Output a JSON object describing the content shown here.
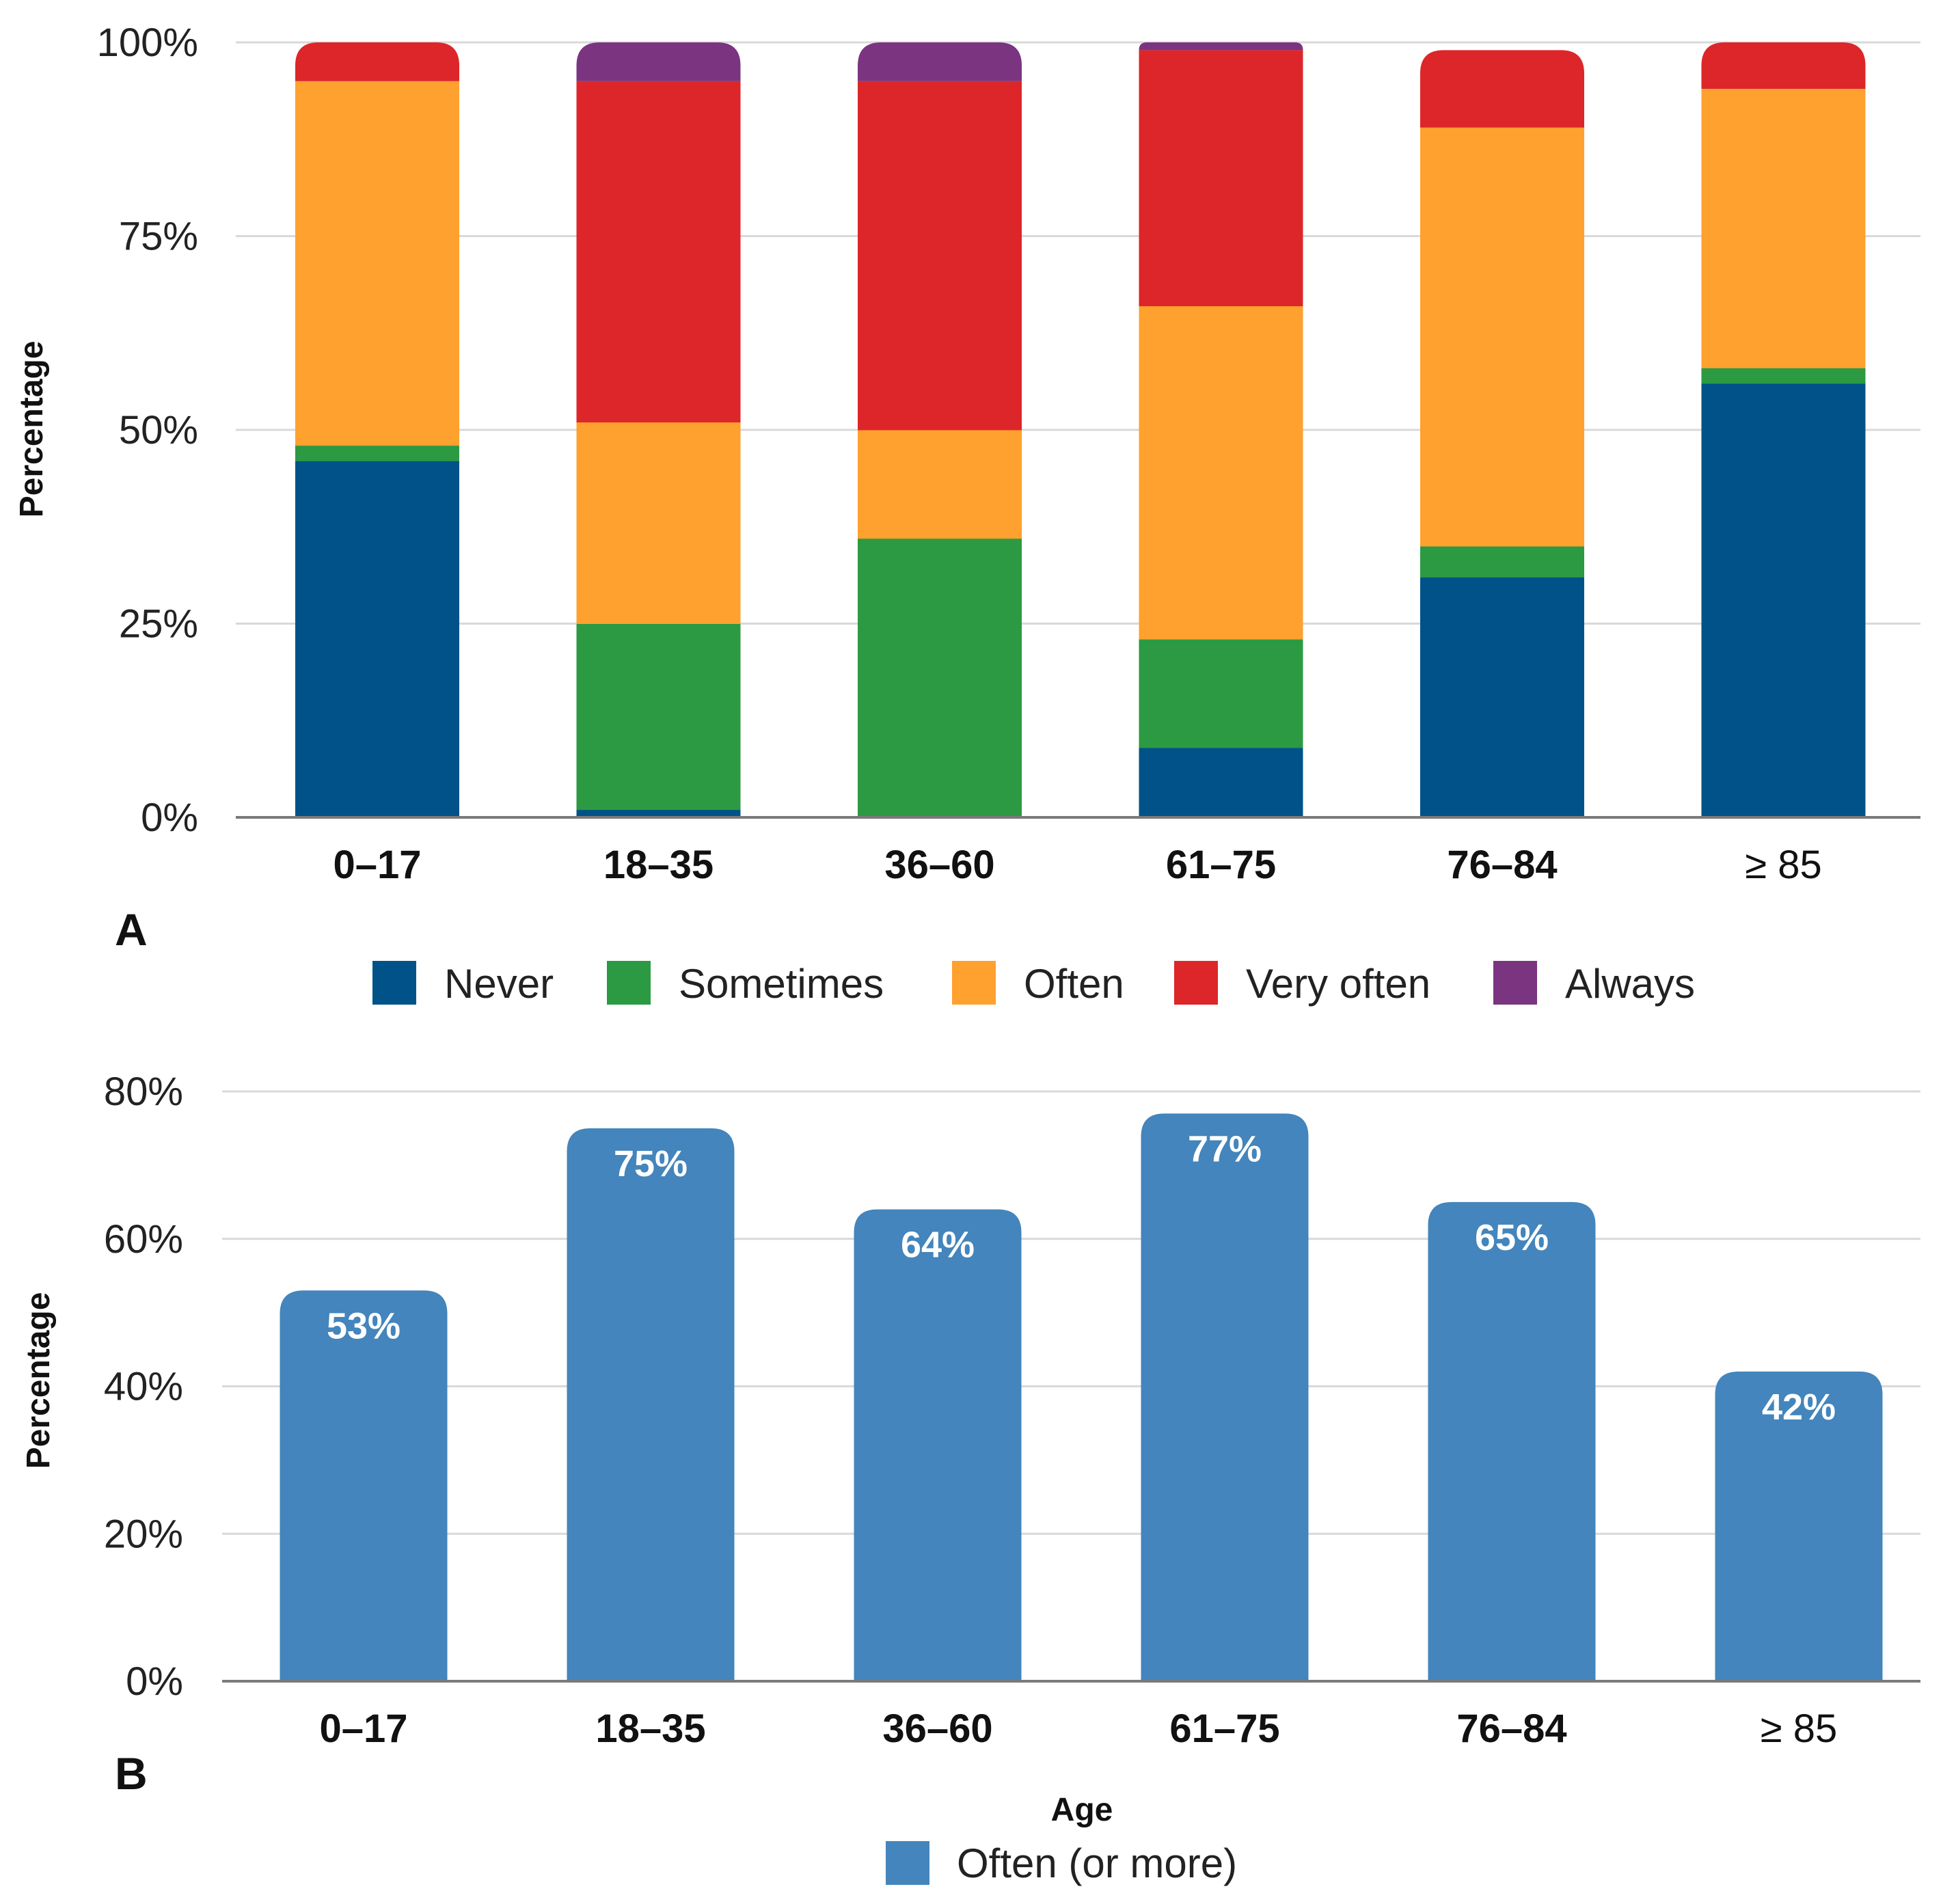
{
  "chart_data": [
    {
      "panel": "A",
      "type": "bar",
      "stacked": true,
      "ylabel": "Percentage",
      "ylim": [
        0,
        100
      ],
      "yticks": [
        "0%",
        "25%",
        "50%",
        "75%",
        "100%"
      ],
      "categories": [
        "0–17",
        "18–35",
        "36–60",
        "61–75",
        "76–84",
        "≥ 85"
      ],
      "series": [
        {
          "name": "Never",
          "color": "#005289",
          "values": [
            46,
            1,
            0,
            9,
            31,
            56
          ]
        },
        {
          "name": "Sometimes",
          "color": "#2b9a42",
          "values": [
            2,
            24,
            36,
            14,
            4,
            2
          ]
        },
        {
          "name": "Often",
          "color": "#ffa12f",
          "values": [
            47,
            26,
            14,
            43,
            54,
            36
          ]
        },
        {
          "name": "Very often",
          "color": "#dd2629",
          "values": [
            5,
            44,
            45,
            33,
            10,
            6
          ]
        },
        {
          "name": "Always",
          "color": "#7b3480",
          "values": [
            0,
            5,
            5,
            1,
            0,
            0
          ]
        }
      ],
      "legend_position": "bottom",
      "grid": true
    },
    {
      "panel": "B",
      "type": "bar",
      "xlabel": "Age",
      "ylabel": "Percentage",
      "ylim": [
        0,
        80
      ],
      "yticks": [
        "0%",
        "20%",
        "40%",
        "60%",
        "80%"
      ],
      "categories": [
        "0–17",
        "18–35",
        "36–60",
        "61–75",
        "76–84",
        "≥ 85"
      ],
      "series": [
        {
          "name": "Often (or more)",
          "color": "#4385bc",
          "values": [
            53,
            75,
            64,
            77,
            65,
            42
          ],
          "labels": [
            "53%",
            "75%",
            "64%",
            "77%",
            "65%",
            "42%"
          ]
        }
      ],
      "legend_position": "bottom",
      "grid": true
    }
  ]
}
